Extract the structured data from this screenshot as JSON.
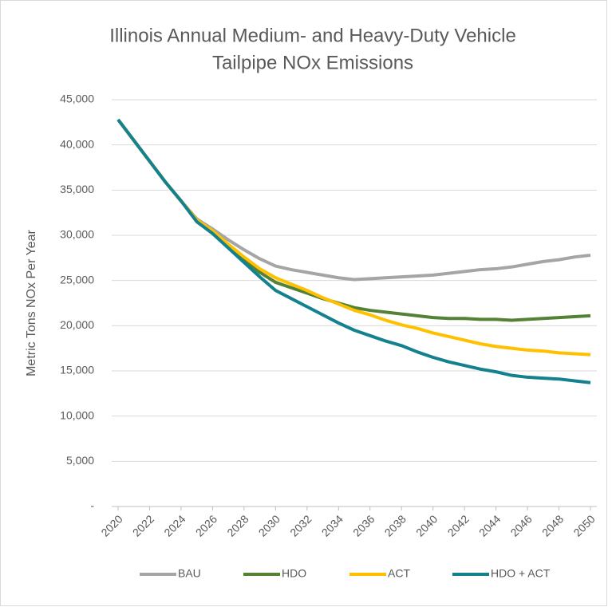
{
  "chart_data": {
    "type": "line",
    "title": [
      "Illinois Annual Medium- and Heavy-Duty Vehicle",
      "Tailpipe NOx Emissions"
    ],
    "y_label": "Metric Tons NOx Per Year",
    "x": [
      2020,
      2021,
      2022,
      2023,
      2024,
      2025,
      2026,
      2027,
      2028,
      2029,
      2030,
      2031,
      2032,
      2033,
      2034,
      2035,
      2036,
      2037,
      2038,
      2039,
      2040,
      2041,
      2042,
      2043,
      2044,
      2045,
      2046,
      2047,
      2048,
      2049,
      2050
    ],
    "xlim": [
      2020,
      2050
    ],
    "xticks": [
      2020,
      2022,
      2024,
      2026,
      2028,
      2030,
      2032,
      2034,
      2036,
      2038,
      2040,
      2042,
      2044,
      2046,
      2048,
      2050
    ],
    "ylim": [
      0,
      45000
    ],
    "yticks": [
      {
        "value": 0,
        "label": "-"
      },
      {
        "value": 5000,
        "label": "5,000"
      },
      {
        "value": 10000,
        "label": "10,000"
      },
      {
        "value": 15000,
        "label": "15,000"
      },
      {
        "value": 20000,
        "label": "20,000"
      },
      {
        "value": 25000,
        "label": "25,000"
      },
      {
        "value": 30000,
        "label": "30,000"
      },
      {
        "value": 35000,
        "label": "35,000"
      },
      {
        "value": 40000,
        "label": "40,000"
      },
      {
        "value": 45000,
        "label": "45,000"
      }
    ],
    "grid": true,
    "legend": "bottom",
    "series": [
      {
        "name": "BAU",
        "color": "#a5a5a5",
        "values": [
          42800,
          40500,
          38200,
          35900,
          33800,
          31800,
          30700,
          29500,
          28400,
          27400,
          26600,
          26200,
          25900,
          25600,
          25300,
          25100,
          25200,
          25300,
          25400,
          25500,
          25600,
          25800,
          26000,
          26200,
          26300,
          26500,
          26800,
          27100,
          27300,
          27600,
          27800
        ]
      },
      {
        "name": "HDO",
        "color": "#548235",
        "values": [
          42800,
          40500,
          38200,
          35900,
          33800,
          31700,
          30400,
          28800,
          27300,
          25900,
          24800,
          24200,
          23600,
          23000,
          22500,
          22000,
          21700,
          21500,
          21300,
          21100,
          20900,
          20800,
          20800,
          20700,
          20700,
          20600,
          20700,
          20800,
          20900,
          21000,
          21100
        ]
      },
      {
        "name": "ACT",
        "color": "#ffc000",
        "values": [
          42800,
          40500,
          38200,
          35900,
          33800,
          31700,
          30500,
          29000,
          27600,
          26300,
          25300,
          24600,
          23900,
          23100,
          22400,
          21700,
          21200,
          20600,
          20100,
          19700,
          19200,
          18800,
          18400,
          18000,
          17700,
          17500,
          17300,
          17200,
          17000,
          16900,
          16800
        ]
      },
      {
        "name": "HDO + ACT",
        "color": "#14818e",
        "values": [
          42800,
          40500,
          38200,
          35900,
          33800,
          31500,
          30200,
          28600,
          27000,
          25400,
          23900,
          23000,
          22100,
          21200,
          20300,
          19500,
          18900,
          18300,
          17800,
          17100,
          16500,
          16000,
          15600,
          15200,
          14900,
          14500,
          14300,
          14200,
          14100,
          13900,
          13700
        ]
      }
    ]
  }
}
